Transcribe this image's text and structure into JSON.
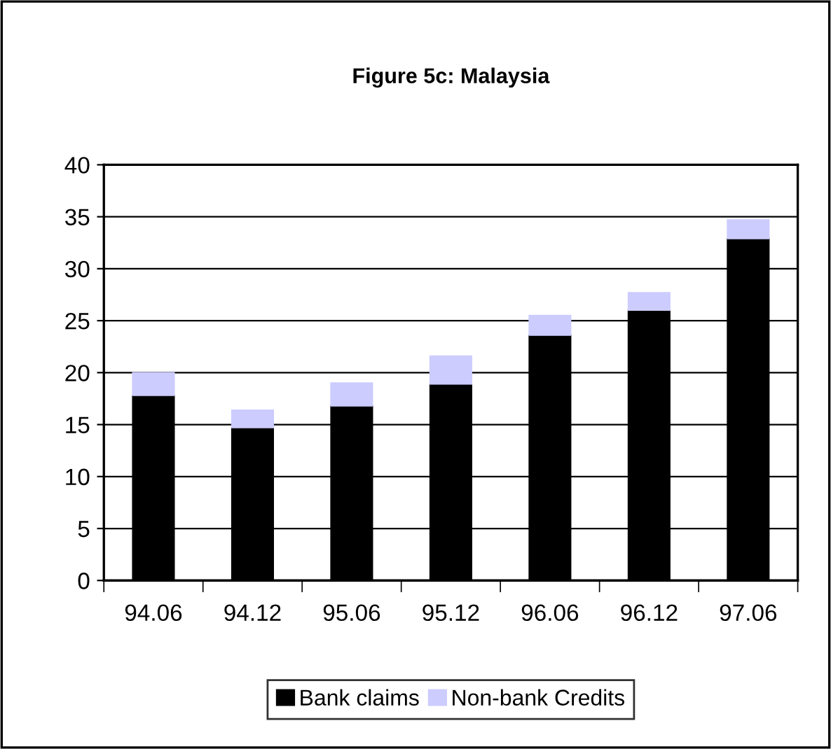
{
  "chart_data": {
    "type": "bar",
    "title": "Figure 5c: Malaysia",
    "stacked": true,
    "categories": [
      "94.06",
      "94.12",
      "95.06",
      "95.12",
      "96.06",
      "96.12",
      "97.06"
    ],
    "series": [
      {
        "name": "Bank claims",
        "color": "#000000",
        "values": [
          17.8,
          14.7,
          16.8,
          18.9,
          23.6,
          26.0,
          32.9
        ]
      },
      {
        "name": "Non-bank Credits",
        "color": "#ccccff",
        "values": [
          2.2,
          1.7,
          2.2,
          2.7,
          1.9,
          1.7,
          1.8
        ]
      }
    ],
    "ylim": [
      0,
      40
    ],
    "yticks": [
      0,
      5,
      10,
      15,
      20,
      25,
      30,
      35,
      40
    ],
    "grid": "y",
    "legend": "bottom"
  }
}
